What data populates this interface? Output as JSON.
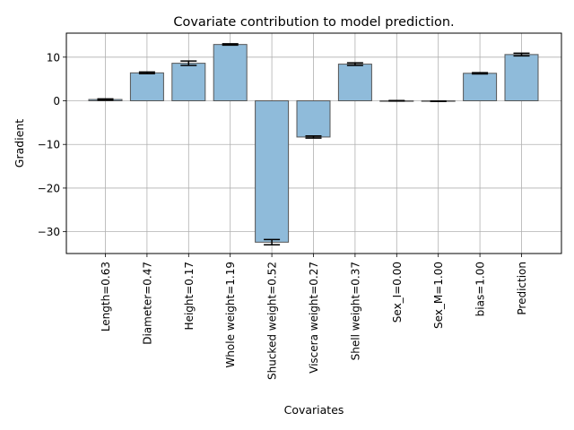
{
  "chart_data": {
    "type": "bar",
    "title": "Covariate contribution to model prediction.",
    "xlabel": "Covariates",
    "ylabel": "Gradient",
    "ylim": [
      -35,
      15.5
    ],
    "yticks": [
      10,
      0,
      -10,
      -20,
      -30
    ],
    "ytick_labels": [
      "10",
      "0",
      "−10",
      "−20",
      "−30"
    ],
    "grid": true,
    "bar_color": "#8fbbda",
    "bar_edge_color": "#555555",
    "error_bar_color": "#000000",
    "categories": [
      "Length=0.63",
      "Diameter=0.47",
      "Height=0.17",
      "Whole weight=1.19",
      "Shucked weight=0.52",
      "Viscera weight=0.27",
      "Shell weight=0.37",
      "Sex_I=0.00",
      "Sex_M=1.00",
      "bias=1.00",
      "Prediction"
    ],
    "values": [
      0.3,
      6.4,
      8.6,
      12.9,
      -32.4,
      -8.3,
      8.4,
      0.0,
      -0.1,
      6.3,
      10.6
    ],
    "errors": [
      0.15,
      0.2,
      0.5,
      0.15,
      0.6,
      0.25,
      0.3,
      0.05,
      0.05,
      0.15,
      0.3
    ]
  }
}
